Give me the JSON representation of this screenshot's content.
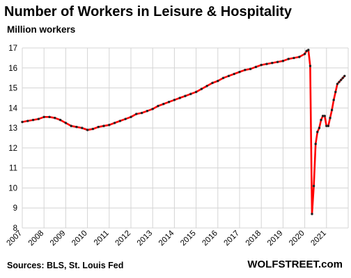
{
  "chart_data": {
    "type": "line",
    "title": "Number of Workers in Leisure & Hospitality",
    "subtitle": "Million workers",
    "source": "Sources: BLS, St. Louis Fed",
    "brand": "WOLFSTREET.com",
    "ylim": [
      8,
      17
    ],
    "yticks": [
      8,
      9,
      10,
      11,
      12,
      13,
      14,
      15,
      16,
      17
    ],
    "xticks": [
      "2007",
      "2008",
      "2009",
      "2010",
      "2011",
      "2012",
      "2013",
      "2014",
      "2015",
      "2016",
      "2017",
      "2018",
      "2019",
      "2020",
      "2021"
    ],
    "xlim": [
      2007.0,
      2022.0
    ],
    "grid": true,
    "line_color": "#ff0000",
    "marker_color": "#222222",
    "series": [
      {
        "x": [
          2007.0,
          2007.25,
          2007.5,
          2007.75,
          2008.0,
          2008.25,
          2008.5,
          2008.75,
          2009.0,
          2009.25,
          2009.5,
          2009.75,
          2010.0,
          2010.25,
          2010.5,
          2010.75,
          2011.0,
          2011.25,
          2011.5,
          2011.75,
          2012.0,
          2012.25,
          2012.5,
          2012.75,
          2013.0,
          2013.25,
          2013.5,
          2013.75,
          2014.0,
          2014.25,
          2014.5,
          2014.75,
          2015.0,
          2015.25,
          2015.5,
          2015.75,
          2016.0,
          2016.25,
          2016.5,
          2016.75,
          2017.0,
          2017.25,
          2017.5,
          2017.75,
          2018.0,
          2018.25,
          2018.5,
          2018.75,
          2019.0,
          2019.25,
          2019.5,
          2019.75,
          2020.0,
          2020.083,
          2020.167,
          2020.25,
          2020.333,
          2020.417,
          2020.5,
          2020.583,
          2020.667,
          2020.75,
          2020.833,
          2020.917,
          2021.0,
          2021.083,
          2021.167,
          2021.25,
          2021.333,
          2021.417,
          2021.5,
          2021.583,
          2021.667,
          2021.75,
          2021.833
        ],
        "values": [
          13.3,
          13.35,
          13.4,
          13.45,
          13.55,
          13.55,
          13.5,
          13.4,
          13.25,
          13.1,
          13.05,
          13.0,
          12.9,
          12.95,
          13.05,
          13.1,
          13.15,
          13.25,
          13.35,
          13.45,
          13.55,
          13.7,
          13.75,
          13.85,
          13.95,
          14.1,
          14.2,
          14.3,
          14.4,
          14.5,
          14.6,
          14.7,
          14.8,
          14.95,
          15.1,
          15.25,
          15.35,
          15.5,
          15.6,
          15.7,
          15.8,
          15.9,
          15.95,
          16.05,
          16.15,
          16.2,
          16.25,
          16.3,
          16.35,
          16.45,
          16.5,
          16.55,
          16.7,
          16.85,
          16.9,
          16.1,
          8.7,
          10.1,
          12.2,
          12.8,
          13.0,
          13.4,
          13.6,
          13.6,
          13.1,
          13.1,
          13.5,
          13.9,
          14.4,
          14.8,
          15.2,
          15.3,
          15.4,
          15.5,
          15.6
        ]
      }
    ]
  }
}
